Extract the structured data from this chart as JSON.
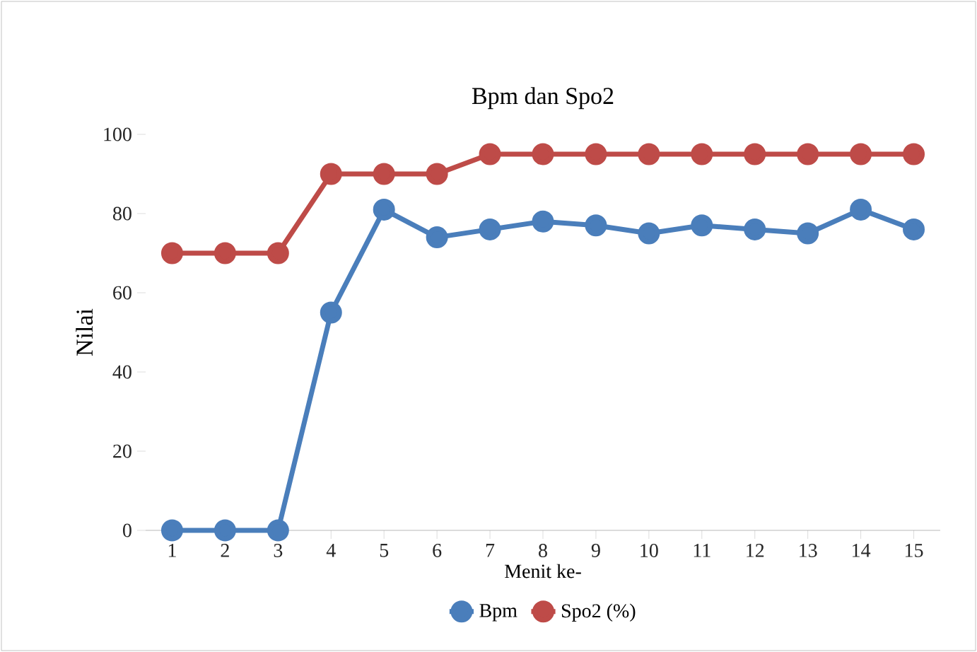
{
  "chart_data": {
    "type": "line",
    "title": "Bpm dan Spo2",
    "xlabel": "Menit ke-",
    "ylabel": "Nilai",
    "categories": [
      "1",
      "2",
      "3",
      "4",
      "5",
      "6",
      "7",
      "8",
      "9",
      "10",
      "11",
      "12",
      "13",
      "14",
      "15"
    ],
    "series": [
      {
        "name": "Bpm",
        "color": "#4a7ebb",
        "values": [
          0,
          0,
          0,
          55,
          81,
          74,
          76,
          78,
          77,
          75,
          77,
          76,
          75,
          81,
          76
        ]
      },
      {
        "name": "Spo2 (%)",
        "color": "#be4b48",
        "values": [
          70,
          70,
          70,
          90,
          90,
          90,
          95,
          95,
          95,
          95,
          95,
          95,
          95,
          95,
          95
        ]
      }
    ],
    "ylim": [
      0,
      100
    ],
    "yticks": [
      0,
      20,
      40,
      60,
      80,
      100
    ],
    "grid": false,
    "legend": "bottom",
    "marker": "circle",
    "line_style": "solid"
  }
}
